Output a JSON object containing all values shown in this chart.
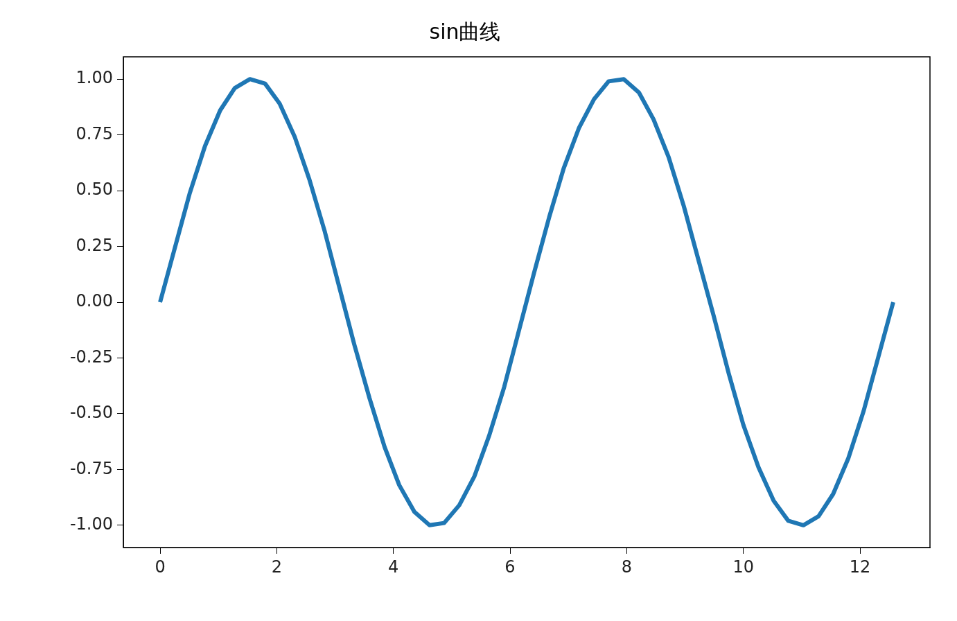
{
  "chart_data": {
    "type": "line",
    "title": "sin曲线",
    "x": [
      0,
      0.26,
      0.51,
      0.77,
      1.03,
      1.28,
      1.54,
      1.8,
      2.05,
      2.31,
      2.56,
      2.82,
      3.08,
      3.33,
      3.59,
      3.85,
      4.1,
      4.36,
      4.62,
      4.87,
      5.13,
      5.39,
      5.64,
      5.9,
      6.15,
      6.41,
      6.67,
      6.92,
      7.18,
      7.44,
      7.69,
      7.95,
      8.21,
      8.46,
      8.72,
      8.98,
      9.23,
      9.49,
      9.75,
      10.0,
      10.26,
      10.52,
      10.77,
      11.03,
      11.29,
      11.54,
      11.8,
      12.06,
      12.31,
      12.57
    ],
    "series": [
      {
        "color": "#1f77b4",
        "values": [
          0,
          0.25,
          0.49,
          0.7,
          0.86,
          0.96,
          1.0,
          0.98,
          0.89,
          0.74,
          0.55,
          0.32,
          0.06,
          -0.19,
          -0.43,
          -0.65,
          -0.82,
          -0.94,
          -1.0,
          -0.99,
          -0.91,
          -0.78,
          -0.6,
          -0.38,
          -0.13,
          0.13,
          0.38,
          0.6,
          0.78,
          0.91,
          0.99,
          1.0,
          0.94,
          0.82,
          0.65,
          0.43,
          0.19,
          -0.06,
          -0.32,
          -0.55,
          -0.74,
          -0.89,
          -0.98,
          -1.0,
          -0.96,
          -0.86,
          -0.7,
          -0.49,
          -0.25,
          0
        ]
      }
    ],
    "xlim": [
      -0.63,
      13.2
    ],
    "xticks": [
      0,
      2,
      4,
      6,
      8,
      10,
      12
    ],
    "ylim": [
      -1.1,
      1.1
    ],
    "yticks": [
      {
        "value": -1,
        "label": "-1.00"
      },
      {
        "value": -0.75,
        "label": "-0.75"
      },
      {
        "value": -0.5,
        "label": "-0.50"
      },
      {
        "value": -0.25,
        "label": "-0.25"
      },
      {
        "value": 0,
        "label": "0.00"
      },
      {
        "value": 0.25,
        "label": "0.25"
      },
      {
        "value": 0.5,
        "label": "0.50"
      },
      {
        "value": 0.75,
        "label": "0.75"
      },
      {
        "value": 1,
        "label": "1.00"
      }
    ],
    "grid": false,
    "legend": false,
    "marker": "none",
    "line_style": "solid"
  }
}
